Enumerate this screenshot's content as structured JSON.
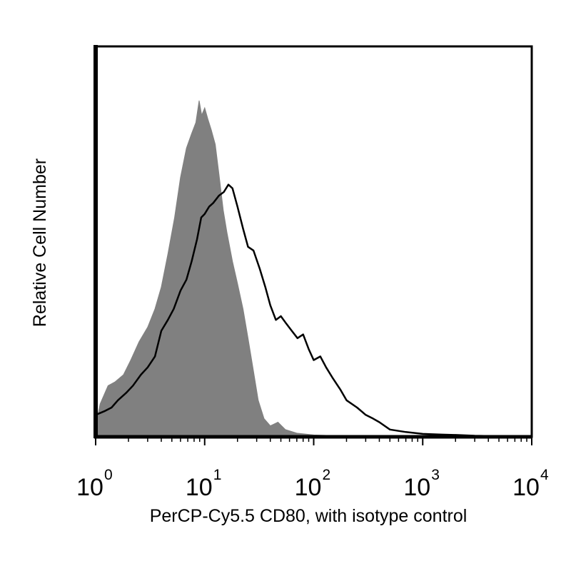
{
  "chart_data": {
    "type": "area",
    "xlabel": "PerCP-Cy5.5 CD80, with isotype control",
    "ylabel": "Relative Cell Number",
    "x_scale": "log10",
    "xlim": [
      1,
      10000
    ],
    "ylim": [
      0,
      100
    ],
    "x_ticks": [
      {
        "base": "10",
        "exp": "0",
        "value": 1
      },
      {
        "base": "10",
        "exp": "1",
        "value": 10
      },
      {
        "base": "10",
        "exp": "2",
        "value": 100
      },
      {
        "base": "10",
        "exp": "3",
        "value": 1000
      },
      {
        "base": "10",
        "exp": "4",
        "value": 10000
      }
    ],
    "grid": false,
    "legend": "none",
    "series": [
      {
        "style": "filled",
        "color": "#808080",
        "points": [
          [
            1.0,
            3
          ],
          [
            1.1,
            9
          ],
          [
            1.3,
            14
          ],
          [
            1.5,
            15
          ],
          [
            1.8,
            17
          ],
          [
            2.1,
            21
          ],
          [
            2.5,
            26
          ],
          [
            3.0,
            30
          ],
          [
            3.5,
            35
          ],
          [
            4.0,
            41
          ],
          [
            4.6,
            50
          ],
          [
            5.3,
            60
          ],
          [
            6.0,
            71
          ],
          [
            6.8,
            79
          ],
          [
            7.6,
            83
          ],
          [
            8.3,
            86
          ],
          [
            8.9,
            92
          ],
          [
            9.4,
            88
          ],
          [
            10.0,
            90
          ],
          [
            10.7,
            87
          ],
          [
            11.5,
            84
          ],
          [
            12.5,
            80
          ],
          [
            13.5,
            72
          ],
          [
            14.8,
            62
          ],
          [
            16.0,
            56
          ],
          [
            18.0,
            48
          ],
          [
            20.0,
            42
          ],
          [
            22.5,
            35
          ],
          [
            25.0,
            27
          ],
          [
            28.0,
            18
          ],
          [
            31.0,
            10
          ],
          [
            35.0,
            5
          ],
          [
            40.0,
            3
          ],
          [
            47.0,
            4
          ],
          [
            55.0,
            2
          ],
          [
            70.0,
            1
          ],
          [
            100.0,
            0.5
          ],
          [
            200.0,
            0.2
          ],
          [
            500.0,
            0
          ]
        ]
      },
      {
        "style": "line",
        "color": "#000000",
        "points": [
          [
            1.0,
            6
          ],
          [
            1.2,
            7
          ],
          [
            1.4,
            8
          ],
          [
            1.6,
            10
          ],
          [
            1.9,
            12
          ],
          [
            2.2,
            14
          ],
          [
            2.6,
            17
          ],
          [
            3.0,
            19
          ],
          [
            3.5,
            22
          ],
          [
            4.0,
            29
          ],
          [
            4.6,
            32
          ],
          [
            5.2,
            35
          ],
          [
            6.0,
            40
          ],
          [
            6.8,
            43
          ],
          [
            7.6,
            48
          ],
          [
            8.5,
            54
          ],
          [
            9.3,
            60
          ],
          [
            10.0,
            61
          ],
          [
            11.0,
            63
          ],
          [
            12.0,
            64
          ],
          [
            13.5,
            66
          ],
          [
            15.0,
            67
          ],
          [
            16.5,
            69
          ],
          [
            18.0,
            68
          ],
          [
            20.0,
            63
          ],
          [
            22.5,
            57
          ],
          [
            25.0,
            52
          ],
          [
            28.0,
            51
          ],
          [
            32.0,
            46
          ],
          [
            36.0,
            41
          ],
          [
            40.0,
            36
          ],
          [
            45.0,
            32
          ],
          [
            50.0,
            33
          ],
          [
            56.0,
            31
          ],
          [
            63.0,
            29
          ],
          [
            71.0,
            27
          ],
          [
            80.0,
            28
          ],
          [
            90.0,
            24
          ],
          [
            100.0,
            21
          ],
          [
            115.0,
            22
          ],
          [
            130.0,
            19
          ],
          [
            150.0,
            16
          ],
          [
            175.0,
            13
          ],
          [
            200.0,
            10
          ],
          [
            250.0,
            8
          ],
          [
            300.0,
            6
          ],
          [
            350.0,
            5
          ],
          [
            400.0,
            4
          ],
          [
            500.0,
            2
          ],
          [
            700.0,
            1.3
          ],
          [
            1000.0,
            0.8
          ],
          [
            1500.0,
            0.6
          ],
          [
            2000.0,
            0.5
          ],
          [
            3000.0,
            0.3
          ],
          [
            10000.0,
            0
          ]
        ]
      }
    ]
  }
}
